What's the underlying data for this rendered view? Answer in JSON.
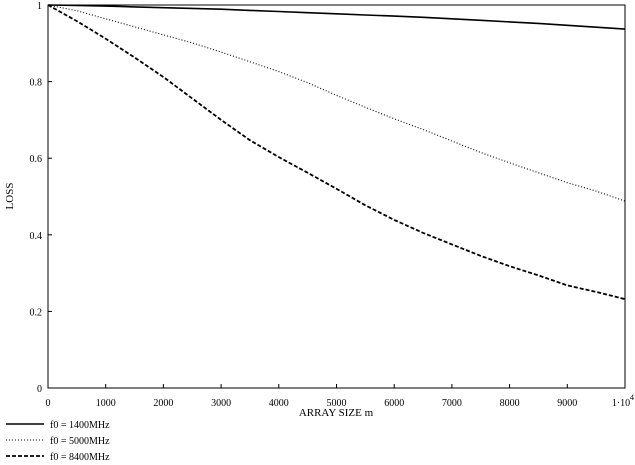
{
  "chart_data": {
    "type": "line",
    "xlabel": "ARRAY SIZE m",
    "ylabel": "LOSS",
    "xlim": [
      0,
      10000
    ],
    "ylim": [
      0,
      1
    ],
    "xticks": [
      "0",
      "1000",
      "2000",
      "3000",
      "4000",
      "5000",
      "6000",
      "7000",
      "8000",
      "9000",
      "1·10"
    ],
    "xtick_last_exponent": "4",
    "yticks": [
      "0",
      "0.2",
      "0.4",
      "0.6",
      "0.8",
      "1"
    ],
    "grid": false,
    "legend_position": "bottom-left",
    "x": [
      0,
      500,
      1000,
      1500,
      2000,
      2500,
      3000,
      3500,
      4000,
      4500,
      5000,
      5500,
      6000,
      6500,
      7000,
      7500,
      8000,
      8500,
      9000,
      9500,
      10000
    ],
    "series": [
      {
        "name": "f0 = 1400MHz",
        "dash": "solid",
        "values": [
          1.0,
          0.999,
          0.997,
          0.995,
          0.993,
          0.991,
          0.989,
          0.986,
          0.983,
          0.98,
          0.977,
          0.974,
          0.971,
          0.968,
          0.964,
          0.96,
          0.956,
          0.952,
          0.947,
          0.942,
          0.937
        ]
      },
      {
        "name": "f0 = 5000MHz",
        "dash": "dotted",
        "values": [
          1.0,
          0.985,
          0.964,
          0.943,
          0.922,
          0.901,
          0.877,
          0.852,
          0.826,
          0.797,
          0.764,
          0.733,
          0.703,
          0.675,
          0.645,
          0.615,
          0.588,
          0.562,
          0.536,
          0.514,
          0.488
        ]
      },
      {
        "name": "f0 = 8400MHz",
        "dash": "dashed",
        "values": [
          1.0,
          0.958,
          0.912,
          0.863,
          0.812,
          0.756,
          0.7,
          0.647,
          0.603,
          0.562,
          0.52,
          0.477,
          0.439,
          0.405,
          0.375,
          0.345,
          0.318,
          0.294,
          0.268,
          0.251,
          0.232
        ]
      }
    ]
  }
}
